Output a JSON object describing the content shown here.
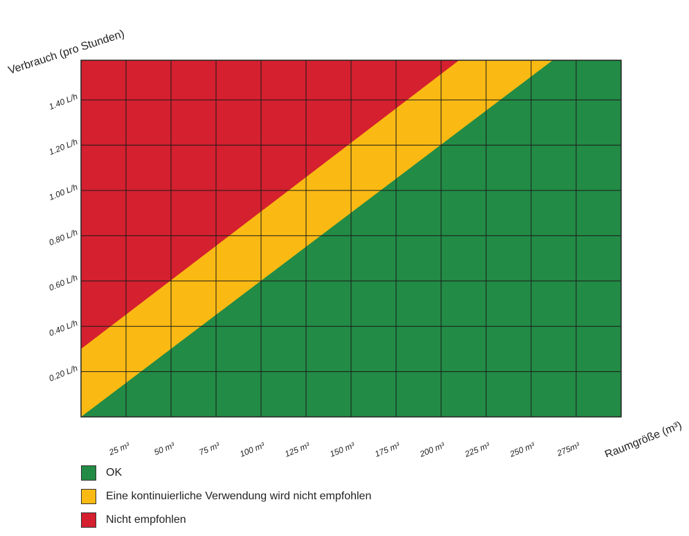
{
  "chart_data": {
    "type": "area",
    "xlabel": "Raumgröße (m³)",
    "ylabel": "Verbrauch (pro Stunden)",
    "xlim": [
      0,
      300
    ],
    "ylim": [
      0,
      1.575
    ],
    "x_ticks": [
      {
        "value": 25,
        "label": "25 m³"
      },
      {
        "value": 50,
        "label": "50 m³"
      },
      {
        "value": 75,
        "label": "75 m³"
      },
      {
        "value": 100,
        "label": "100 m³"
      },
      {
        "value": 125,
        "label": "125 m³"
      },
      {
        "value": 150,
        "label": "150 m³"
      },
      {
        "value": 175,
        "label": "175 m³"
      },
      {
        "value": 200,
        "label": "200 m³"
      },
      {
        "value": 225,
        "label": "225 m³"
      },
      {
        "value": 250,
        "label": "250 m³"
      },
      {
        "value": 275,
        "label": "275m³"
      }
    ],
    "y_ticks": [
      {
        "value": 0.2,
        "label": "0.20 L/h"
      },
      {
        "value": 0.4,
        "label": "0.40 L/h"
      },
      {
        "value": 0.6,
        "label": "0.60 L/h"
      },
      {
        "value": 0.8,
        "label": "0.80 L/h"
      },
      {
        "value": 1.0,
        "label": "1.00 L/h"
      },
      {
        "value": 1.2,
        "label": "1.20 L/h"
      },
      {
        "value": 1.4,
        "label": "1.40 L/h"
      }
    ],
    "grid": true,
    "boundaries": [
      {
        "name": "OK / Eine kontinuierliche Verwendung wird nicht empfohlen",
        "x": [
          0,
          262
        ],
        "y": [
          0,
          1.575
        ]
      },
      {
        "name": "Eine kontinuierliche Verwendung wird nicht empfohlen / Nicht empfohlen",
        "x": [
          0,
          210
        ],
        "y": [
          0.3,
          1.575
        ]
      }
    ],
    "regions": [
      {
        "name": "OK",
        "color": "#228B45"
      },
      {
        "name": "Eine kontinuierliche Verwendung wird nicht empfohlen",
        "color": "#FBBA13"
      },
      {
        "name": "Nicht empfohlen",
        "color": "#D4202F"
      }
    ],
    "legend_position": "bottom-left"
  }
}
